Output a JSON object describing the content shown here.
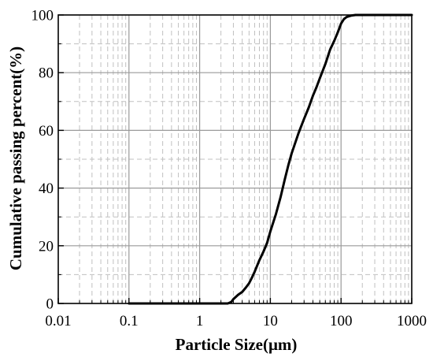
{
  "chart_data": {
    "type": "line",
    "title": "",
    "xlabel": "Particle Size(μm)",
    "ylabel": "Cumulative passing percent(%)",
    "x_scale": "log",
    "xlim": [
      0.01,
      1000
    ],
    "ylim": [
      0,
      100
    ],
    "x_ticks": [
      "0.01",
      "0.1",
      "1",
      "10",
      "100",
      "1000"
    ],
    "y_ticks": [
      "0",
      "20",
      "40",
      "60",
      "80",
      "100"
    ],
    "grid": {
      "major": true,
      "minor": true
    },
    "legend": "none",
    "colors": {
      "line": "#000000",
      "major_grid": "#9a9a9a",
      "minor_grid": "#c0c0c0"
    },
    "series": [
      {
        "x": [
          0.1,
          1,
          2.5,
          2.8,
          3,
          3.5,
          4,
          4.5,
          5,
          5.5,
          6,
          7,
          8,
          9,
          10,
          12,
          14,
          16,
          18,
          20,
          25,
          30,
          35,
          40,
          45,
          50,
          60,
          70,
          80,
          90,
          100,
          110,
          120,
          140,
          160,
          180,
          200,
          300,
          1000
        ],
        "y": [
          0,
          0,
          0,
          0.5,
          1.5,
          3,
          4,
          5.5,
          7,
          9,
          11,
          15,
          18,
          21,
          25,
          31,
          37,
          43,
          48,
          52,
          59,
          64,
          68,
          72,
          75,
          78,
          83,
          88,
          91,
          94,
          97,
          98.6,
          99.3,
          99.8,
          100,
          100,
          100,
          100,
          100
        ]
      }
    ]
  }
}
